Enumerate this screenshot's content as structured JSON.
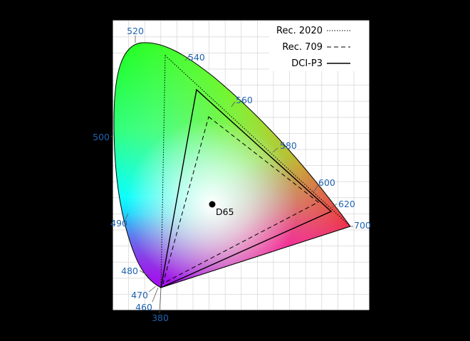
{
  "diagram": {
    "background": "#000000",
    "plot_background": "#ffffff",
    "grid_color": "#d9d9d9",
    "wavelength_label_color": "#1f63b0"
  },
  "wavelength_labels": [
    "380",
    "460",
    "470",
    "480",
    "490",
    "500",
    "520",
    "540",
    "560",
    "580",
    "600",
    "620",
    "700"
  ],
  "gamuts": [
    {
      "name": "Rec. 2020",
      "line_style": "dotted"
    },
    {
      "name": "Rec. 709",
      "line_style": "dashed"
    },
    {
      "name": "DCI-P3",
      "line_style": "solid"
    }
  ],
  "white_point": {
    "label": "D65"
  }
}
